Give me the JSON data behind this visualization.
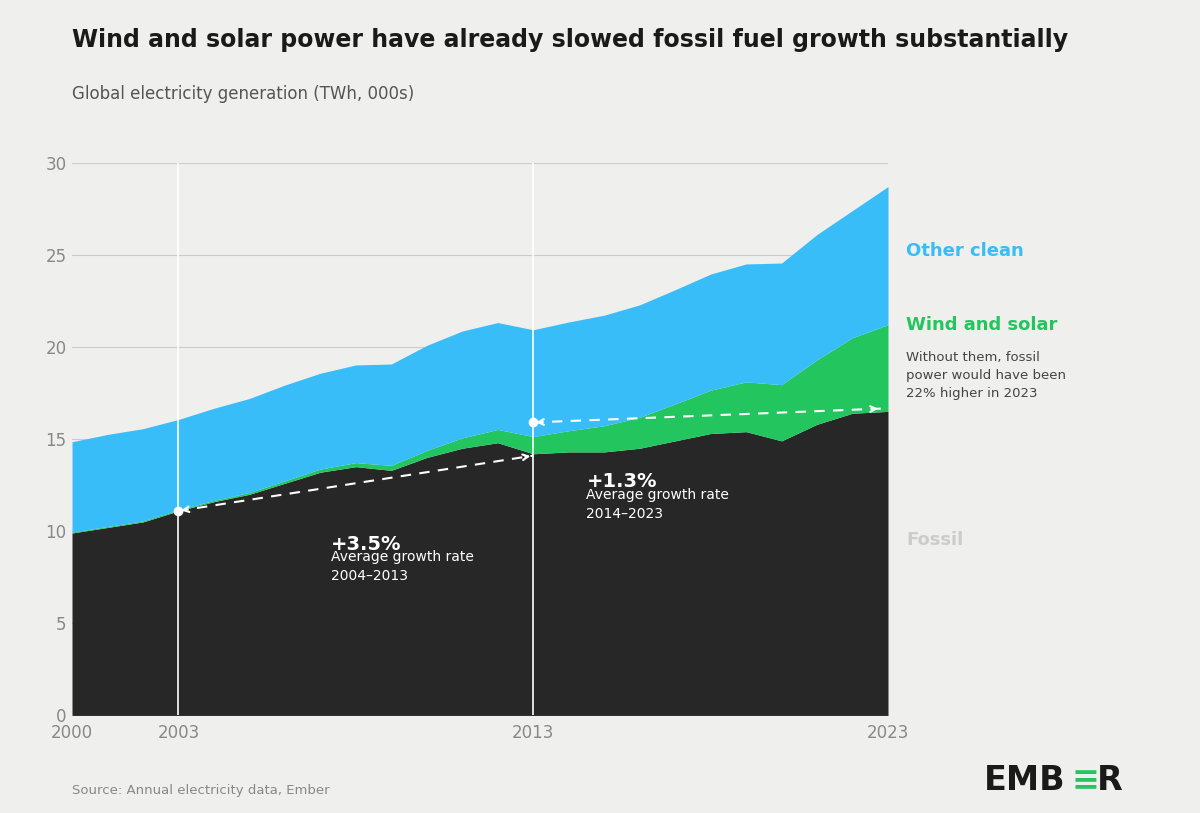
{
  "title": "Wind and solar power have already slowed fossil fuel growth substantially",
  "subtitle": "Global electricity generation (TWh, 000s)",
  "source": "Source: Annual electricity data, Ember",
  "background_color": "#efefed",
  "years": [
    2000,
    2001,
    2002,
    2003,
    2004,
    2005,
    2006,
    2007,
    2008,
    2009,
    2010,
    2011,
    2012,
    2013,
    2014,
    2015,
    2016,
    2017,
    2018,
    2019,
    2020,
    2021,
    2022,
    2023
  ],
  "fossil": [
    9.9,
    10.2,
    10.5,
    11.1,
    11.6,
    12.0,
    12.6,
    13.2,
    13.5,
    13.3,
    14.0,
    14.5,
    14.8,
    14.2,
    14.3,
    14.3,
    14.5,
    14.9,
    15.3,
    15.4,
    14.9,
    15.8,
    16.4,
    16.5
  ],
  "wind_solar": [
    0.05,
    0.05,
    0.06,
    0.06,
    0.07,
    0.1,
    0.13,
    0.17,
    0.22,
    0.27,
    0.38,
    0.56,
    0.72,
    0.93,
    1.15,
    1.42,
    1.68,
    2.0,
    2.35,
    2.7,
    3.05,
    3.5,
    4.1,
    4.7
  ],
  "other_clean": [
    4.9,
    5.0,
    5.0,
    4.9,
    5.0,
    5.1,
    5.2,
    5.2,
    5.3,
    5.5,
    5.7,
    5.8,
    5.8,
    5.8,
    5.9,
    6.0,
    6.1,
    6.2,
    6.3,
    6.4,
    6.6,
    6.8,
    6.9,
    7.5
  ],
  "fossil_color": "#272727",
  "wind_solar_color": "#22c55e",
  "other_clean_color": "#38bdf8",
  "ylim": [
    0,
    30
  ],
  "yticks": [
    0,
    5,
    10,
    15,
    20,
    25,
    30
  ],
  "xticks": [
    2000,
    2003,
    2013,
    2023
  ],
  "ann1_x1": 2003,
  "ann1_x2": 2013,
  "ann1_y1": 11.1,
  "ann1_y2": 14.1,
  "ann1_pct": "+3.5%",
  "ann1_label": "Average growth rate\n2004–2013",
  "ann2_x1": 2013,
  "ann2_x2": 2022.8,
  "ann2_y1": 15.9,
  "ann2_y2": 16.65,
  "ann2_pct": "+1.3%",
  "ann2_label": "Average growth rate\n2014–2023",
  "label_fossil": "Fossil",
  "label_other_clean": "Other clean",
  "label_wind_solar": "Wind and solar",
  "label_wind_solar_sub": "Without them, fossil\npower would have been\n22% higher in 2023"
}
